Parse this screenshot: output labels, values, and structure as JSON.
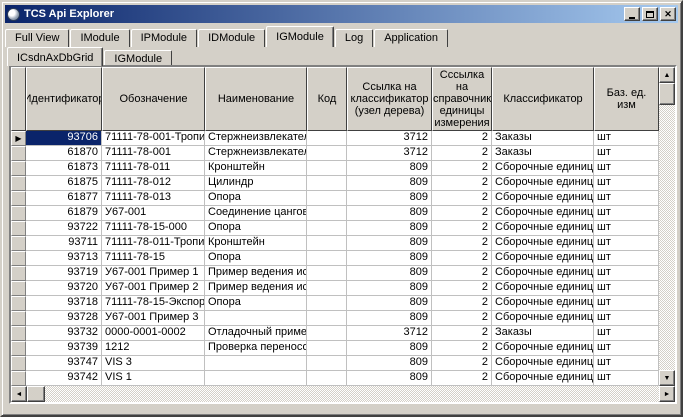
{
  "window": {
    "title": "TCS Api Explorer"
  },
  "titlebar": {
    "minimize_label": "minimize",
    "maximize_label": "maximize",
    "close_glyph": "✕"
  },
  "tabs": {
    "items": [
      "Full View",
      "IModule",
      "IPModule",
      "IDModule",
      "IGModule",
      "Log",
      "Application"
    ],
    "active": "IGModule"
  },
  "subtabs": {
    "items": [
      "ICsdnAxDbGrid",
      "IGModule"
    ],
    "active": "ICsdnAxDbGrid"
  },
  "grid": {
    "columns": [
      "Идентификатор",
      "Обозначение",
      "Наименование",
      "Код",
      "Ссылка на классификатор (узел дерева)",
      "Сссылка на справочник единицы измерения",
      "Классификатор",
      "Баз. ед. изм"
    ],
    "rows": [
      [
        "93706",
        "71111-78-001-Тропичес",
        "Стержнеизвлекатель",
        "",
        "3712",
        "2",
        "Заказы",
        "шт"
      ],
      [
        "61870",
        "71111-78-001",
        "Стержнеизвлекатель",
        "",
        "3712",
        "2",
        "Заказы",
        "шт"
      ],
      [
        "61873",
        "71111-78-011",
        "Кронштейн",
        "",
        "809",
        "2",
        "Сборочные единицы",
        "шт"
      ],
      [
        "61875",
        "71111-78-012",
        "Цилиндр",
        "",
        "809",
        "2",
        "Сборочные единицы",
        "шт"
      ],
      [
        "61877",
        "71111-78-013",
        "Опора",
        "",
        "809",
        "2",
        "Сборочные единицы",
        "шт"
      ],
      [
        "61879",
        "У67-001",
        "Соединение цанговое",
        "",
        "809",
        "2",
        "Сборочные единицы",
        "шт"
      ],
      [
        "93722",
        "71111-78-15-000",
        "Опора",
        "",
        "809",
        "2",
        "Сборочные единицы",
        "шт"
      ],
      [
        "93711",
        "71111-78-011-Тропичес",
        "Кронштейн",
        "",
        "809",
        "2",
        "Сборочные единицы",
        "шт"
      ],
      [
        "93713",
        "71111-78-15",
        "Опора",
        "",
        "809",
        "2",
        "Сборочные единицы",
        "шт"
      ],
      [
        "93719",
        "У67-001 Пример 1",
        "Пример ведения испол",
        "",
        "809",
        "2",
        "Сборочные единицы",
        "шт"
      ],
      [
        "93720",
        "У67-001 Пример 2",
        "Пример ведения испол",
        "",
        "809",
        "2",
        "Сборочные единицы",
        "шт"
      ],
      [
        "93718",
        "71111-78-15-Экспортно",
        "Опора",
        "",
        "809",
        "2",
        "Сборочные единицы",
        "шт"
      ],
      [
        "93728",
        "У67-001 Пример 3",
        "",
        "",
        "809",
        "2",
        "Сборочные единицы",
        "шт"
      ],
      [
        "93732",
        "0000-0001-0002",
        "Отладочный пример",
        "",
        "3712",
        "2",
        "Заказы",
        "шт"
      ],
      [
        "93739",
        "1212",
        "Проверка переносов",
        "",
        "809",
        "2",
        "Сборочные единицы",
        "шт"
      ],
      [
        "93747",
        "VIS 3",
        "",
        "",
        "809",
        "2",
        "Сборочные единицы",
        "шт"
      ],
      [
        "93742",
        "VIS 1",
        "",
        "",
        "809",
        "2",
        "Сборочные единицы",
        "шт"
      ]
    ],
    "selected_row_index": 0,
    "row_indicator_glyph": "▶"
  },
  "icons": {
    "scroll_up": "▲",
    "scroll_down": "▼",
    "scroll_left": "◄",
    "scroll_right": "►"
  },
  "colors": {
    "titlebar_start": "#0a246a",
    "titlebar_end": "#a6caf0",
    "chrome": "#d4d0c8",
    "selection": "#0a246a",
    "grid_line": "#c0c0c0"
  }
}
